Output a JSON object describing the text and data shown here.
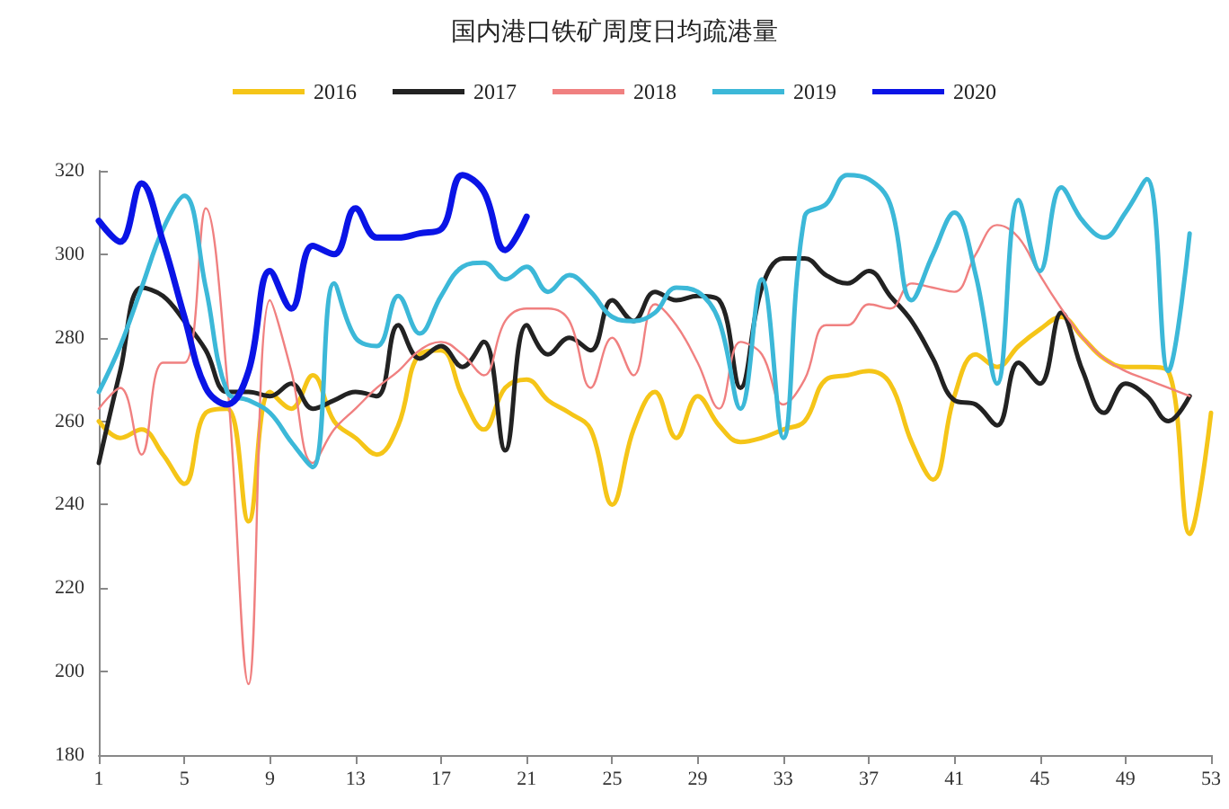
{
  "chart_data": {
    "type": "line",
    "title": "国内港口铁矿周度日均疏港量",
    "x": [
      1,
      2,
      3,
      4,
      5,
      6,
      7,
      8,
      9,
      10,
      11,
      12,
      13,
      14,
      15,
      16,
      17,
      18,
      19,
      20,
      21,
      22,
      23,
      24,
      25,
      26,
      27,
      28,
      29,
      30,
      31,
      32,
      33,
      34,
      35,
      36,
      37,
      38,
      39,
      40,
      41,
      42,
      43,
      44,
      45,
      46,
      47,
      48,
      49,
      50,
      51,
      52,
      53
    ],
    "xlim": [
      1,
      53
    ],
    "xticks": [
      1,
      5,
      9,
      13,
      17,
      21,
      25,
      29,
      33,
      37,
      41,
      45,
      49,
      53
    ],
    "ylim": [
      180,
      320
    ],
    "yticks": [
      180,
      200,
      220,
      240,
      260,
      280,
      300,
      320
    ],
    "grid": false,
    "legend": "top",
    "marker": "none",
    "line_style": "solid",
    "series": [
      {
        "name": "2016",
        "color": "#f5c518",
        "values": [
          260,
          256,
          258,
          252,
          245,
          262,
          263,
          236,
          267,
          263,
          271,
          260,
          256,
          252,
          259,
          276,
          277,
          266,
          258,
          268,
          270,
          265,
          262,
          258,
          240,
          258,
          267,
          256,
          266,
          259,
          255,
          256,
          258,
          260,
          270,
          271,
          272,
          269,
          255,
          246,
          266,
          276,
          273,
          278,
          282,
          285,
          280,
          275,
          273,
          273,
          272,
          233,
          262
        ]
      },
      {
        "name": "2017",
        "color": "#222222",
        "values": [
          250,
          272,
          292,
          290,
          284,
          277,
          267,
          267,
          266,
          269,
          263,
          265,
          267,
          266,
          283,
          275,
          278,
          273,
          279,
          253,
          283,
          276,
          280,
          277,
          289,
          284,
          291,
          289,
          290,
          289,
          268,
          292,
          299,
          299,
          295,
          293,
          296,
          290,
          284,
          275,
          265,
          264,
          259,
          274,
          269,
          286,
          272,
          262,
          269,
          266,
          260,
          266,
          null
        ]
      },
      {
        "name": "2018",
        "color": "#f08080",
        "values": [
          263,
          268,
          252,
          274,
          274,
          311,
          270,
          197,
          289,
          272,
          250,
          258,
          263,
          268,
          272,
          277,
          279,
          276,
          271,
          284,
          287,
          287,
          284,
          268,
          280,
          271,
          288,
          283,
          274,
          263,
          279,
          276,
          264,
          270,
          283,
          283,
          288,
          287,
          293,
          292,
          291,
          300,
          307,
          304,
          295,
          287,
          280,
          275,
          272,
          270,
          268,
          266,
          null
        ]
      },
      {
        "name": "2019",
        "color": "#3cb8d8",
        "values": [
          267,
          278,
          292,
          306,
          314,
          292,
          267,
          265,
          262,
          255,
          249,
          293,
          280,
          278,
          290,
          281,
          290,
          297,
          298,
          294,
          297,
          291,
          295,
          291,
          285,
          284,
          286,
          292,
          291,
          284,
          263,
          294,
          256,
          309,
          312,
          319,
          318,
          312,
          289,
          300,
          310,
          295,
          269,
          313,
          296,
          316,
          308,
          304,
          310,
          318,
          272,
          305,
          null
        ]
      },
      {
        "name": "2020",
        "color": "#0a14e6",
        "values": [
          308,
          303,
          317,
          303,
          285,
          268,
          264,
          272,
          296,
          287,
          302,
          300,
          311,
          304,
          304,
          305,
          306,
          319,
          315,
          301,
          309,
          null,
          null,
          null,
          null,
          null,
          null,
          null,
          null,
          null,
          null,
          null,
          null,
          null,
          null,
          null,
          null,
          null,
          null,
          null,
          null,
          null,
          null,
          null,
          null,
          null,
          null,
          null,
          null,
          null,
          null,
          null,
          null
        ]
      }
    ]
  }
}
